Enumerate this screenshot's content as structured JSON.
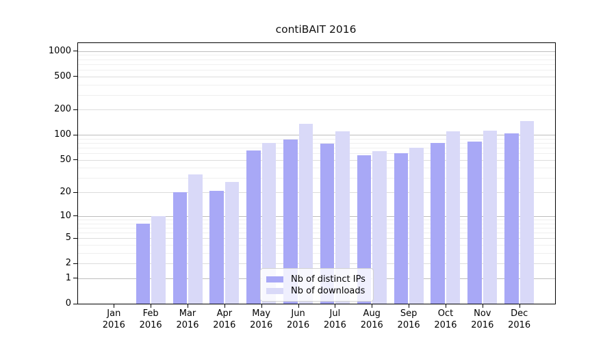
{
  "chart_data": {
    "type": "bar",
    "title": "contiBAIT 2016",
    "categories": [
      "Jan",
      "Feb",
      "Mar",
      "Apr",
      "May",
      "Jun",
      "Jul",
      "Aug",
      "Sep",
      "Oct",
      "Nov",
      "Dec"
    ],
    "year": "2016",
    "series": [
      {
        "name": "Nb of distinct IPs",
        "color": "#a8a8f6",
        "values": [
          0,
          8,
          20,
          21,
          65,
          88,
          78,
          57,
          60,
          80,
          84,
          104
        ]
      },
      {
        "name": "Nb of downloads",
        "color": "#d9d9f8",
        "values": [
          0,
          10,
          33,
          27,
          80,
          135,
          110,
          64,
          70,
          110,
          113,
          147
        ]
      }
    ],
    "xlabel": "",
    "ylabel": "",
    "y_axis": {
      "scale": "log1p",
      "tick_values": [
        0,
        1,
        2,
        5,
        10,
        20,
        50,
        100,
        200,
        500,
        1000
      ],
      "tick_labels": [
        "0",
        "1",
        "2",
        "5",
        "10",
        "20",
        "50",
        "100",
        "200",
        "500",
        "1000"
      ],
      "ylim": [
        0,
        1244
      ]
    },
    "grid": "on",
    "legend_position": "bottom-center"
  }
}
